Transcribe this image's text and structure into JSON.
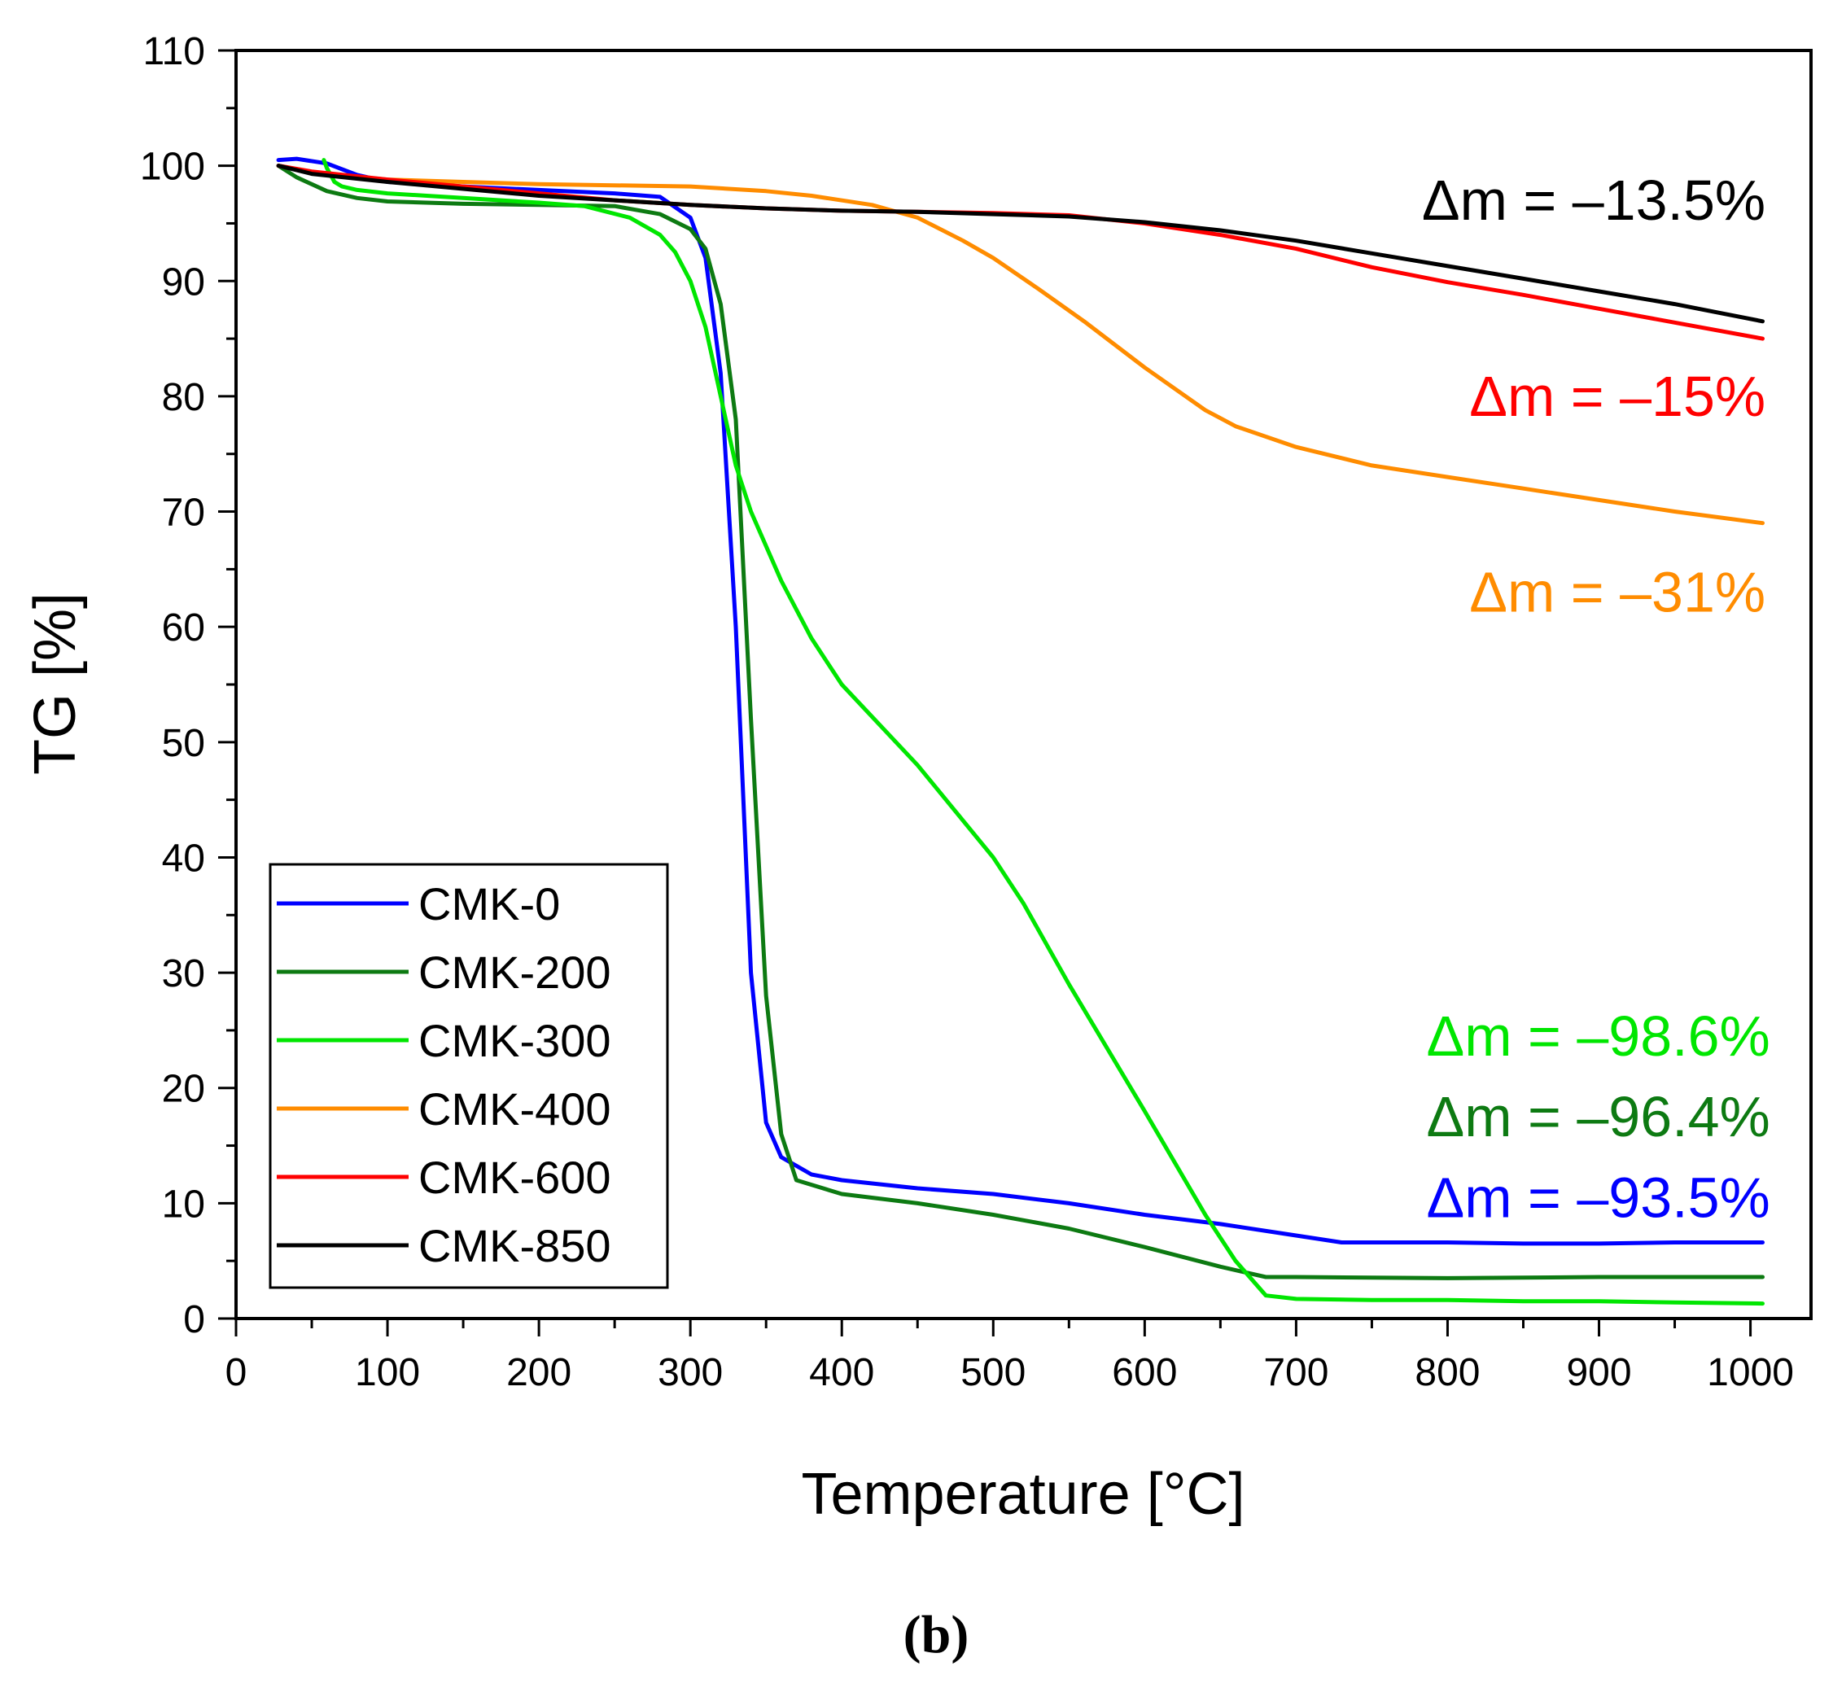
{
  "chart_data": {
    "type": "line",
    "xlabel": "Temperature [°C]",
    "ylabel": "TG [%]",
    "xlim": [
      0,
      1040
    ],
    "ylim": [
      0,
      110
    ],
    "xticks": [
      0,
      100,
      200,
      300,
      400,
      500,
      600,
      700,
      800,
      900,
      1000
    ],
    "yticks": [
      0,
      10,
      20,
      30,
      40,
      50,
      60,
      70,
      80,
      90,
      100,
      110
    ],
    "grid": false,
    "legend_position": "bottom-left",
    "panel_label": "(b)",
    "series": [
      {
        "name": "CMK-0",
        "color": "#0000ff",
        "points": [
          [
            28,
            100.5
          ],
          [
            40,
            100.6
          ],
          [
            60,
            100.2
          ],
          [
            80,
            99.2
          ],
          [
            100,
            98.6
          ],
          [
            150,
            98.2
          ],
          [
            200,
            97.9
          ],
          [
            250,
            97.6
          ],
          [
            280,
            97.3
          ],
          [
            300,
            95.5
          ],
          [
            310,
            92
          ],
          [
            320,
            82
          ],
          [
            330,
            60
          ],
          [
            340,
            30
          ],
          [
            350,
            17
          ],
          [
            360,
            14
          ],
          [
            380,
            12.5
          ],
          [
            400,
            12
          ],
          [
            450,
            11.3
          ],
          [
            500,
            10.8
          ],
          [
            550,
            10
          ],
          [
            600,
            9
          ],
          [
            650,
            8.2
          ],
          [
            700,
            7.2
          ],
          [
            730,
            6.6
          ],
          [
            800,
            6.6
          ],
          [
            850,
            6.5
          ],
          [
            900,
            6.5
          ],
          [
            950,
            6.6
          ],
          [
            1008,
            6.6
          ]
        ]
      },
      {
        "name": "CMK-200",
        "color": "#0d7a12",
        "points": [
          [
            28,
            100
          ],
          [
            40,
            99
          ],
          [
            60,
            97.8
          ],
          [
            80,
            97.2
          ],
          [
            100,
            96.9
          ],
          [
            150,
            96.7
          ],
          [
            200,
            96.6
          ],
          [
            250,
            96.5
          ],
          [
            280,
            95.8
          ],
          [
            300,
            94.5
          ],
          [
            310,
            92.8
          ],
          [
            320,
            88
          ],
          [
            330,
            78
          ],
          [
            340,
            52
          ],
          [
            350,
            28
          ],
          [
            360,
            16
          ],
          [
            370,
            12
          ],
          [
            400,
            10.8
          ],
          [
            450,
            10
          ],
          [
            500,
            9
          ],
          [
            550,
            7.8
          ],
          [
            600,
            6.2
          ],
          [
            650,
            4.5
          ],
          [
            680,
            3.6
          ],
          [
            700,
            3.6
          ],
          [
            800,
            3.5
          ],
          [
            900,
            3.6
          ],
          [
            1008,
            3.6
          ]
        ]
      },
      {
        "name": "CMK-300",
        "color": "#00e600",
        "points": [
          [
            58,
            100.5
          ],
          [
            60,
            99.8
          ],
          [
            65,
            98.6
          ],
          [
            70,
            98.2
          ],
          [
            80,
            97.9
          ],
          [
            100,
            97.6
          ],
          [
            150,
            97.2
          ],
          [
            200,
            96.8
          ],
          [
            230,
            96.5
          ],
          [
            260,
            95.5
          ],
          [
            280,
            94
          ],
          [
            290,
            92.5
          ],
          [
            300,
            90
          ],
          [
            310,
            86
          ],
          [
            320,
            80
          ],
          [
            330,
            74
          ],
          [
            340,
            70
          ],
          [
            360,
            64
          ],
          [
            380,
            59
          ],
          [
            400,
            55
          ],
          [
            450,
            48
          ],
          [
            500,
            40
          ],
          [
            520,
            36
          ],
          [
            550,
            29
          ],
          [
            600,
            18
          ],
          [
            640,
            9
          ],
          [
            660,
            5
          ],
          [
            680,
            2
          ],
          [
            700,
            1.7
          ],
          [
            750,
            1.6
          ],
          [
            800,
            1.6
          ],
          [
            850,
            1.5
          ],
          [
            900,
            1.5
          ],
          [
            950,
            1.4
          ],
          [
            1008,
            1.3
          ]
        ]
      },
      {
        "name": "CMK-400",
        "color": "#ff8c00",
        "points": [
          [
            28,
            100
          ],
          [
            50,
            99.4
          ],
          [
            100,
            98.8
          ],
          [
            150,
            98.6
          ],
          [
            200,
            98.4
          ],
          [
            250,
            98.3
          ],
          [
            300,
            98.2
          ],
          [
            350,
            97.8
          ],
          [
            380,
            97.4
          ],
          [
            420,
            96.6
          ],
          [
            450,
            95.5
          ],
          [
            480,
            93.5
          ],
          [
            500,
            92
          ],
          [
            530,
            89.3
          ],
          [
            560,
            86.5
          ],
          [
            600,
            82.5
          ],
          [
            640,
            78.8
          ],
          [
            660,
            77.4
          ],
          [
            700,
            75.6
          ],
          [
            750,
            74
          ],
          [
            800,
            73
          ],
          [
            850,
            72
          ],
          [
            900,
            71
          ],
          [
            950,
            70
          ],
          [
            1008,
            69
          ]
        ]
      },
      {
        "name": "CMK-600",
        "color": "#ff0000",
        "points": [
          [
            28,
            100
          ],
          [
            50,
            99.5
          ],
          [
            100,
            98.8
          ],
          [
            150,
            98.2
          ],
          [
            200,
            97.6
          ],
          [
            250,
            97
          ],
          [
            300,
            96.6
          ],
          [
            350,
            96.3
          ],
          [
            400,
            96.1
          ],
          [
            450,
            96
          ],
          [
            500,
            95.9
          ],
          [
            550,
            95.7
          ],
          [
            600,
            95
          ],
          [
            650,
            94
          ],
          [
            700,
            92.8
          ],
          [
            750,
            91.2
          ],
          [
            800,
            89.9
          ],
          [
            850,
            88.8
          ],
          [
            900,
            87.6
          ],
          [
            950,
            86.4
          ],
          [
            1008,
            85
          ]
        ]
      },
      {
        "name": "CMK-850",
        "color": "#000000",
        "points": [
          [
            28,
            100
          ],
          [
            50,
            99.3
          ],
          [
            100,
            98.6
          ],
          [
            150,
            98
          ],
          [
            200,
            97.4
          ],
          [
            250,
            97
          ],
          [
            300,
            96.6
          ],
          [
            350,
            96.3
          ],
          [
            400,
            96.1
          ],
          [
            450,
            96
          ],
          [
            500,
            95.8
          ],
          [
            550,
            95.6
          ],
          [
            600,
            95.1
          ],
          [
            650,
            94.4
          ],
          [
            700,
            93.5
          ],
          [
            750,
            92.4
          ],
          [
            800,
            91.3
          ],
          [
            850,
            90.2
          ],
          [
            900,
            89.1
          ],
          [
            950,
            88
          ],
          [
            1008,
            86.5
          ]
        ]
      }
    ],
    "annotations": [
      {
        "text": "Δm = –13.5%",
        "color": "#000000",
        "x": 1010,
        "y": 97
      },
      {
        "text": "Δm = –15%",
        "color": "#ff0000",
        "x": 1010,
        "y": 80
      },
      {
        "text": "Δm = –31%",
        "color": "#ff8c00",
        "x": 1010,
        "y": 63
      },
      {
        "text": "Δm = –98.6%",
        "color": "#00e600",
        "x": 1013,
        "y": 24.5
      },
      {
        "text": "Δm = –96.4%",
        "color": "#0d7a12",
        "x": 1013,
        "y": 17.5
      },
      {
        "text": "Δm = –93.5%",
        "color": "#0000ff",
        "x": 1013,
        "y": 10.5
      }
    ]
  }
}
